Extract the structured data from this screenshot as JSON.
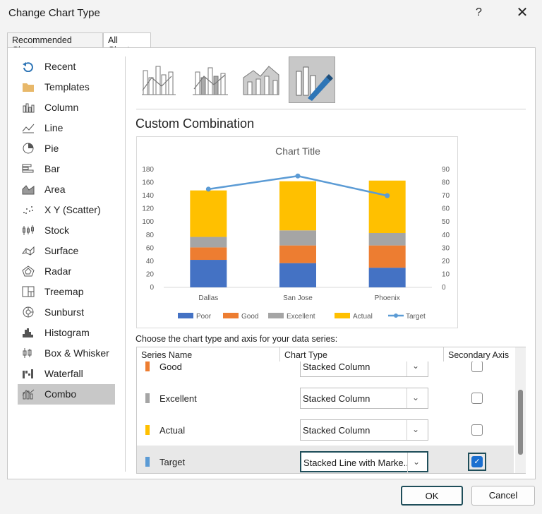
{
  "dialog": {
    "title": "Change Chart Type",
    "help": "?",
    "close": "✕"
  },
  "tabs": [
    "Recommended Charts",
    "All Charts"
  ],
  "sidebar": {
    "items": [
      {
        "label": "Recent",
        "icon": "recent-icon"
      },
      {
        "label": "Templates",
        "icon": "templates-icon"
      },
      {
        "label": "Column",
        "icon": "column-chart-icon"
      },
      {
        "label": "Line",
        "icon": "line-chart-icon"
      },
      {
        "label": "Pie",
        "icon": "pie-chart-icon"
      },
      {
        "label": "Bar",
        "icon": "bar-chart-icon"
      },
      {
        "label": "Area",
        "icon": "area-chart-icon"
      },
      {
        "label": "X Y (Scatter)",
        "icon": "scatter-chart-icon"
      },
      {
        "label": "Stock",
        "icon": "stock-chart-icon"
      },
      {
        "label": "Surface",
        "icon": "surface-chart-icon"
      },
      {
        "label": "Radar",
        "icon": "radar-chart-icon"
      },
      {
        "label": "Treemap",
        "icon": "treemap-chart-icon"
      },
      {
        "label": "Sunburst",
        "icon": "sunburst-chart-icon"
      },
      {
        "label": "Histogram",
        "icon": "histogram-chart-icon"
      },
      {
        "label": "Box & Whisker",
        "icon": "box-whisker-chart-icon"
      },
      {
        "label": "Waterfall",
        "icon": "waterfall-chart-icon"
      },
      {
        "label": "Combo",
        "icon": "combo-chart-icon",
        "selected": true
      }
    ]
  },
  "subtypes": {
    "selected_index": 3,
    "heading": "Custom Combination"
  },
  "chart_data": {
    "type": "bar",
    "title": "Chart Title",
    "categories": [
      "Dallas",
      "San Jose",
      "Phoenix"
    ],
    "stacked": true,
    "series": [
      {
        "name": "Poor",
        "color": "#4472c4",
        "values": [
          42,
          37,
          30
        ],
        "axis": "primary"
      },
      {
        "name": "Good",
        "color": "#ed7d31",
        "values": [
          19,
          27,
          34
        ],
        "axis": "primary"
      },
      {
        "name": "Excellent",
        "color": "#a5a5a5",
        "values": [
          16,
          23,
          19
        ],
        "axis": "primary"
      },
      {
        "name": "Actual",
        "color": "#ffc000",
        "values": [
          71,
          75,
          80
        ],
        "axis": "primary"
      },
      {
        "name": "Target",
        "color": "#5b9bd5",
        "values": [
          75,
          85,
          70
        ],
        "axis": "secondary",
        "type": "line"
      }
    ],
    "ylim": [
      0,
      180
    ],
    "yticks": [
      0,
      20,
      40,
      60,
      80,
      100,
      120,
      140,
      160,
      180
    ],
    "y2lim": [
      0,
      90
    ],
    "y2ticks": [
      0,
      10,
      20,
      30,
      40,
      50,
      60,
      70,
      80,
      90
    ],
    "legend": "bottom",
    "grid": false
  },
  "series_table": {
    "prompt": "Choose the chart type and axis for your data series:",
    "headers": [
      "Series Name",
      "Chart Type",
      "Secondary Axis"
    ],
    "rows": [
      {
        "name": "Good",
        "color": "#ed7d31",
        "type": "Stacked Column",
        "secondary": false
      },
      {
        "name": "Excellent",
        "color": "#a5a5a5",
        "type": "Stacked Column",
        "secondary": false
      },
      {
        "name": "Actual",
        "color": "#ffc000",
        "type": "Stacked Column",
        "secondary": false
      },
      {
        "name": "Target",
        "color": "#5b9bd5",
        "type": "Stacked Line with Marke...",
        "secondary": true
      }
    ]
  },
  "buttons": {
    "ok": "OK",
    "cancel": "Cancel"
  }
}
